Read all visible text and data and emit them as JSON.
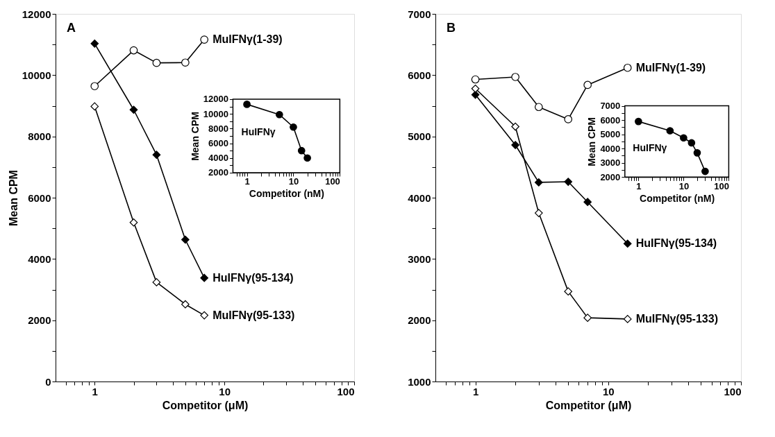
{
  "chart_data": [
    {
      "type": "line",
      "title": "A",
      "xlabel": "Competitor (μM)",
      "ylabel": "Mean CPM",
      "log": "x",
      "grid": false,
      "xlim": [
        0.5,
        100
      ],
      "ylim": [
        0,
        12000
      ],
      "xticks": [
        {
          "value": 0.6,
          "label": null
        },
        {
          "value": 0.7,
          "label": null
        },
        {
          "value": 0.8,
          "label": null
        },
        {
          "value": 0.9,
          "label": null
        },
        1,
        {
          "value": 2,
          "label": null
        },
        {
          "value": 3,
          "label": null
        },
        {
          "value": 4,
          "label": null
        },
        {
          "value": 5,
          "label": null
        },
        {
          "value": 6,
          "label": null
        },
        {
          "value": 7,
          "label": null
        },
        {
          "value": 8,
          "label": null
        },
        {
          "value": 9,
          "label": null
        },
        10,
        {
          "value": 20,
          "label": null
        },
        {
          "value": 30,
          "label": null
        },
        {
          "value": 40,
          "label": null
        },
        {
          "value": 50,
          "label": null
        },
        {
          "value": 60,
          "label": null
        },
        {
          "value": 70,
          "label": null
        },
        {
          "value": 80,
          "label": null
        },
        {
          "value": 90,
          "label": null
        },
        100
      ],
      "yticks": [
        0,
        {
          "value": 1000,
          "label": null
        },
        2000,
        {
          "value": 3000,
          "label": null
        },
        4000,
        {
          "value": 5000,
          "label": null
        },
        6000,
        {
          "value": 7000,
          "label": null
        },
        8000,
        {
          "value": 9000,
          "label": null
        },
        10000,
        {
          "value": 11000,
          "label": null
        },
        12000
      ],
      "series": [
        {
          "name": "MuIFNγ(1-39)",
          "color": "#ffffff",
          "marker": "circle",
          "x": [
            1,
            2,
            3,
            5,
            7
          ],
          "values": [
            9640,
            10810,
            10400,
            10410,
            11160
          ]
        },
        {
          "name": "HuIFNγ(95-134)",
          "color": "#000000",
          "marker": "diamond",
          "x": [
            1,
            2,
            3,
            5,
            7
          ],
          "values": [
            11030,
            8870,
            7400,
            4630,
            3380
          ]
        },
        {
          "name": "MuIFNγ(95-133)",
          "color": "#ffffff",
          "marker": "diamond",
          "x": [
            1,
            2,
            3,
            5,
            7
          ],
          "values": [
            8980,
            5190,
            3240,
            2520,
            2160
          ]
        }
      ]
    },
    {
      "type": "line",
      "xlabel": "Competitor (nM)",
      "ylabel": "Mean CPM",
      "log": "x",
      "grid": false,
      "xlim": [
        0.5,
        100
      ],
      "ylim": [
        2000,
        12000
      ],
      "xticks": [
        {
          "value": 0.6,
          "label": null
        },
        {
          "value": 0.7,
          "label": null
        },
        {
          "value": 0.8,
          "label": null
        },
        {
          "value": 0.9,
          "label": null
        },
        1,
        {
          "value": 2,
          "label": null
        },
        {
          "value": 3,
          "label": null
        },
        {
          "value": 4,
          "label": null
        },
        {
          "value": 5,
          "label": null
        },
        {
          "value": 6,
          "label": null
        },
        {
          "value": 7,
          "label": null
        },
        {
          "value": 8,
          "label": null
        },
        {
          "value": 9,
          "label": null
        },
        10,
        {
          "value": 20,
          "label": null
        },
        {
          "value": 30,
          "label": null
        },
        {
          "value": 40,
          "label": null
        },
        {
          "value": 50,
          "label": null
        },
        {
          "value": 60,
          "label": null
        },
        {
          "value": 70,
          "label": null
        },
        {
          "value": 80,
          "label": null
        },
        {
          "value": 90,
          "label": null
        },
        100
      ],
      "yticks": [
        2000,
        {
          "value": 3000,
          "label": null
        },
        4000,
        {
          "value": 5000,
          "label": null
        },
        6000,
        {
          "value": 7000,
          "label": null
        },
        8000,
        {
          "value": 9000,
          "label": null
        },
        10000,
        {
          "value": 11000,
          "label": null
        },
        12000
      ],
      "series": [
        {
          "name": "HuIFNγ",
          "color": "#000000",
          "marker": "circle",
          "x": [
            1,
            5,
            10,
            15,
            20
          ],
          "values": [
            11300,
            9900,
            8200,
            5000,
            4000
          ]
        }
      ]
    },
    {
      "type": "line",
      "title": "B",
      "xlabel": "Competitor (μM)",
      "log": "x",
      "grid": false,
      "xlim": [
        0.5,
        100
      ],
      "ylim": [
        1000,
        7000
      ],
      "xticks": [
        {
          "value": 0.6,
          "label": null
        },
        {
          "value": 0.7,
          "label": null
        },
        {
          "value": 0.8,
          "label": null
        },
        {
          "value": 0.9,
          "label": null
        },
        1,
        {
          "value": 2,
          "label": null
        },
        {
          "value": 3,
          "label": null
        },
        {
          "value": 4,
          "label": null
        },
        {
          "value": 5,
          "label": null
        },
        {
          "value": 6,
          "label": null
        },
        {
          "value": 7,
          "label": null
        },
        {
          "value": 8,
          "label": null
        },
        {
          "value": 9,
          "label": null
        },
        10,
        {
          "value": 20,
          "label": null
        },
        {
          "value": 30,
          "label": null
        },
        {
          "value": 40,
          "label": null
        },
        {
          "value": 50,
          "label": null
        },
        {
          "value": 60,
          "label": null
        },
        {
          "value": 70,
          "label": null
        },
        {
          "value": 80,
          "label": null
        },
        {
          "value": 90,
          "label": null
        },
        100
      ],
      "yticks": [
        1000,
        {
          "value": 1500,
          "label": null
        },
        2000,
        {
          "value": 2500,
          "label": null
        },
        3000,
        {
          "value": 3500,
          "label": null
        },
        4000,
        {
          "value": 4500,
          "label": null
        },
        5000,
        {
          "value": 5500,
          "label": null
        },
        6000,
        {
          "value": 6500,
          "label": null
        },
        7000
      ],
      "series": [
        {
          "name": "MuIFNγ(1-39)",
          "color": "#ffffff",
          "marker": "circle",
          "x": [
            1,
            2,
            3,
            5,
            7,
            14
          ],
          "values": [
            5930,
            5970,
            5480,
            5280,
            5840,
            6120
          ]
        },
        {
          "name": "HuIFNγ(95-134)",
          "color": "#000000",
          "marker": "diamond",
          "x": [
            1,
            2,
            3,
            5,
            7,
            14
          ],
          "values": [
            5680,
            4860,
            4250,
            4260,
            3930,
            3250
          ]
        },
        {
          "name": "MuIFNγ(95-133)",
          "color": "#ffffff",
          "marker": "diamond",
          "x": [
            1,
            2,
            3,
            5,
            7,
            14
          ],
          "values": [
            5780,
            5160,
            3750,
            2470,
            2040,
            2020
          ]
        }
      ]
    },
    {
      "type": "line",
      "xlabel": "Competitor (nM)",
      "ylabel": "Mean CPM",
      "log": "x",
      "grid": false,
      "xlim": [
        0.5,
        100
      ],
      "ylim": [
        2000,
        7000
      ],
      "xticks": [
        {
          "value": 0.6,
          "label": null
        },
        {
          "value": 0.7,
          "label": null
        },
        {
          "value": 0.8,
          "label": null
        },
        {
          "value": 0.9,
          "label": null
        },
        1,
        {
          "value": 2,
          "label": null
        },
        {
          "value": 3,
          "label": null
        },
        {
          "value": 4,
          "label": null
        },
        {
          "value": 5,
          "label": null
        },
        {
          "value": 6,
          "label": null
        },
        {
          "value": 7,
          "label": null
        },
        {
          "value": 8,
          "label": null
        },
        {
          "value": 9,
          "label": null
        },
        10,
        {
          "value": 20,
          "label": null
        },
        {
          "value": 30,
          "label": null
        },
        {
          "value": 40,
          "label": null
        },
        {
          "value": 50,
          "label": null
        },
        {
          "value": 60,
          "label": null
        },
        {
          "value": 70,
          "label": null
        },
        {
          "value": 80,
          "label": null
        },
        {
          "value": 90,
          "label": null
        },
        100
      ],
      "yticks": [
        2000,
        {
          "value": 2500,
          "label": null
        },
        3000,
        {
          "value": 3500,
          "label": null
        },
        4000,
        {
          "value": 4500,
          "label": null
        },
        5000,
        {
          "value": 5500,
          "label": null
        },
        6000,
        {
          "value": 6500,
          "label": null
        },
        7000
      ],
      "series": [
        {
          "name": "HuIFNγ",
          "color": "#000000",
          "marker": "circle",
          "x": [
            1,
            5,
            10,
            15,
            20,
            30
          ],
          "values": [
            5900,
            5250,
            4750,
            4400,
            3700,
            2400
          ]
        }
      ]
    }
  ]
}
